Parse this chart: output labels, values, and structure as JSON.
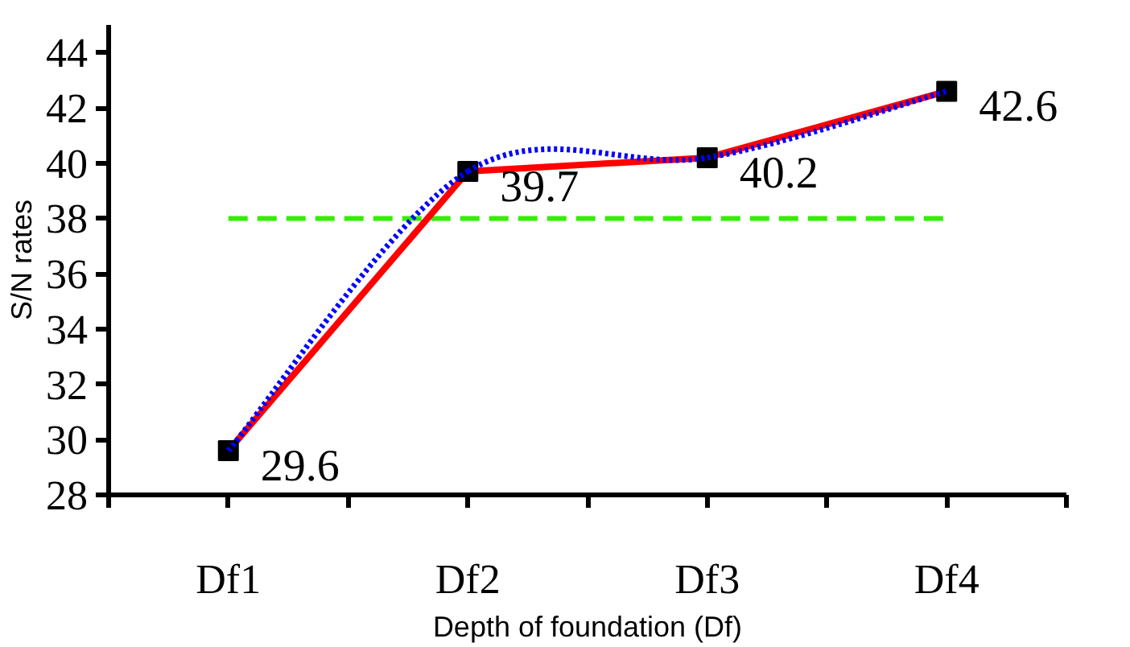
{
  "chart_data": {
    "type": "line",
    "xlabel": "Depth of foundation (Df)",
    "ylabel": "S/N rates",
    "categories": [
      "Df1",
      "Df2",
      "Df3",
      "Df4"
    ],
    "series": [
      {
        "color": "#ff0000",
        "values": [
          29.6,
          39.7,
          40.2,
          42.6
        ],
        "marker": "square",
        "line_style": "solid",
        "data_labels": true
      },
      {
        "type": "line",
        "color": "#0000ff",
        "line_style": "dotted",
        "values": [
          29.6,
          39.7,
          40.2,
          42.6
        ]
      }
    ],
    "ref_lines": [
      {
        "axis": "y",
        "value": 38,
        "color": "#33ee00",
        "line_style": "dashed"
      }
    ],
    "ylim": [
      28,
      45
    ],
    "yticks": [
      28,
      30,
      32,
      34,
      36,
      38,
      40,
      42,
      44
    ],
    "grid": false
  }
}
